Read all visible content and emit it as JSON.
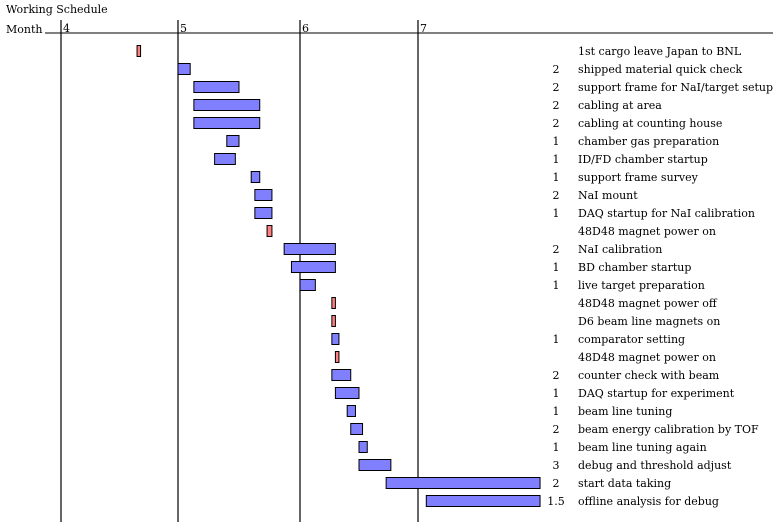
{
  "chart_data": {
    "type": "gantt",
    "title": "Working Schedule",
    "axis_label": "Month",
    "month_ticks": [
      "4",
      "5",
      "6",
      "7"
    ],
    "x_unit": "month",
    "colors": {
      "task": "#8080ff",
      "milestone": "#ff8080",
      "border": "#000000"
    },
    "tasks": [
      {
        "label": "1st cargo leave Japan to BNL",
        "duration": "",
        "start": 4.65,
        "end": 4.68,
        "kind": "milestone"
      },
      {
        "label": "shipped material quick check",
        "duration": "2",
        "start": 5.0,
        "end": 5.1,
        "kind": "task"
      },
      {
        "label": "support frame for NaI/target setup",
        "duration": "2",
        "start": 5.13,
        "end": 5.5,
        "kind": "task"
      },
      {
        "label": "cabling at area",
        "duration": "2",
        "start": 5.13,
        "end": 5.67,
        "kind": "task"
      },
      {
        "label": "cabling at counting house",
        "duration": "2",
        "start": 5.13,
        "end": 5.67,
        "kind": "task"
      },
      {
        "label": "chamber gas preparation",
        "duration": "1",
        "start": 5.4,
        "end": 5.5,
        "kind": "task"
      },
      {
        "label": "ID/FD chamber startup",
        "duration": "1",
        "start": 5.3,
        "end": 5.47,
        "kind": "task"
      },
      {
        "label": "support frame survey",
        "duration": "1",
        "start": 5.6,
        "end": 5.67,
        "kind": "task"
      },
      {
        "label": "NaI mount",
        "duration": "2",
        "start": 5.63,
        "end": 5.77,
        "kind": "task"
      },
      {
        "label": "DAQ startup for NaI calibration",
        "duration": "1",
        "start": 5.63,
        "end": 5.77,
        "kind": "task"
      },
      {
        "label": "48D48 magnet power on",
        "duration": "",
        "start": 5.73,
        "end": 5.77,
        "kind": "milestone"
      },
      {
        "label": "NaI calibration",
        "duration": "2",
        "start": 5.87,
        "end": 6.3,
        "kind": "task"
      },
      {
        "label": "BD chamber startup",
        "duration": "1",
        "start": 5.93,
        "end": 6.3,
        "kind": "task"
      },
      {
        "label": "live target preparation",
        "duration": "1",
        "start": 6.0,
        "end": 6.13,
        "kind": "task"
      },
      {
        "label": "48D48 magnet power off",
        "duration": "",
        "start": 6.27,
        "end": 6.3,
        "kind": "milestone"
      },
      {
        "label": "D6 beam line magnets on",
        "duration": "",
        "start": 6.27,
        "end": 6.3,
        "kind": "milestone"
      },
      {
        "label": "comparator setting",
        "duration": "1",
        "start": 6.27,
        "end": 6.33,
        "kind": "task"
      },
      {
        "label": "48D48 magnet power on",
        "duration": "",
        "start": 6.3,
        "end": 6.33,
        "kind": "milestone"
      },
      {
        "label": "counter check with beam",
        "duration": "2",
        "start": 6.27,
        "end": 6.43,
        "kind": "task"
      },
      {
        "label": "DAQ startup for experiment",
        "duration": "1",
        "start": 6.3,
        "end": 6.5,
        "kind": "task"
      },
      {
        "label": "beam line tuning",
        "duration": "1",
        "start": 6.4,
        "end": 6.47,
        "kind": "task"
      },
      {
        "label": "beam energy calibration by TOF",
        "duration": "2",
        "start": 6.43,
        "end": 6.53,
        "kind": "task"
      },
      {
        "label": "beam line tuning again",
        "duration": "1",
        "start": 6.5,
        "end": 6.57,
        "kind": "task"
      },
      {
        "label": "debug and threshold adjust",
        "duration": "3",
        "start": 6.5,
        "end": 6.77,
        "kind": "task"
      },
      {
        "label": "start data taking",
        "duration": "2",
        "start": 6.73,
        "end": 8.03,
        "kind": "task"
      },
      {
        "label": "offline analysis for debug",
        "duration": "1.5",
        "start": 7.07,
        "end": 8.03,
        "kind": "task"
      }
    ]
  }
}
